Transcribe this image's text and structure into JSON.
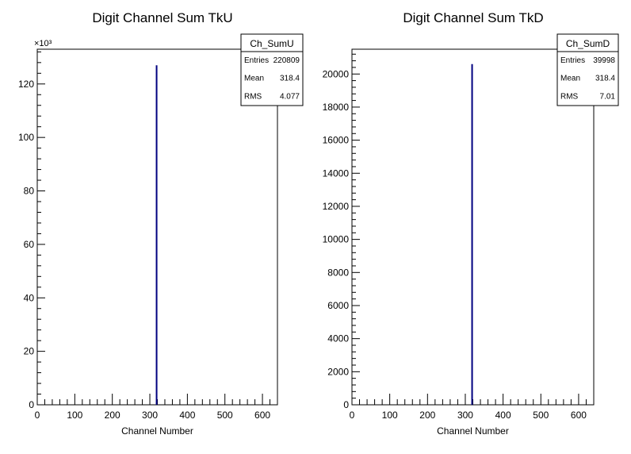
{
  "chart_data": [
    {
      "type": "bar",
      "title": "Digit Channel Sum TkU",
      "xlabel": "Channel Number",
      "ylabel": "",
      "xlim": [
        0,
        640
      ],
      "ylim": [
        0,
        133000
      ],
      "y_exponent_label": "×10³",
      "xticks": [
        "0",
        "100",
        "200",
        "300",
        "400",
        "500",
        "600"
      ],
      "yticks": [
        "0",
        "20",
        "40",
        "60",
        "80",
        "100",
        "120"
      ],
      "ytick_values": [
        0,
        20000,
        40000,
        60000,
        80000,
        100000,
        120000
      ],
      "x": [
        318
      ],
      "values": [
        127000
      ],
      "color": "#000080",
      "stats": {
        "name": "Ch_SumU",
        "rows": [
          {
            "label": "Entries",
            "value": "220809"
          },
          {
            "label": "Mean",
            "value": "318.4"
          },
          {
            "label": "RMS",
            "value": "4.077"
          }
        ]
      }
    },
    {
      "type": "bar",
      "title": "Digit Channel Sum TkD",
      "xlabel": "Channel Number",
      "ylabel": "",
      "xlim": [
        0,
        640
      ],
      "ylim": [
        0,
        21500
      ],
      "y_exponent_label": "",
      "xticks": [
        "0",
        "100",
        "200",
        "300",
        "400",
        "500",
        "600"
      ],
      "yticks": [
        "0",
        "2000",
        "4000",
        "6000",
        "8000",
        "10000",
        "12000",
        "14000",
        "16000",
        "18000",
        "20000"
      ],
      "ytick_values": [
        0,
        2000,
        4000,
        6000,
        8000,
        10000,
        12000,
        14000,
        16000,
        18000,
        20000
      ],
      "x": [
        318
      ],
      "values": [
        20600
      ],
      "color": "#000080",
      "stats": {
        "name": "Ch_SumD",
        "rows": [
          {
            "label": "Entries",
            "value": "39998"
          },
          {
            "label": "Mean",
            "value": "318.4"
          },
          {
            "label": "RMS",
            "value": "7.01"
          }
        ]
      }
    }
  ]
}
